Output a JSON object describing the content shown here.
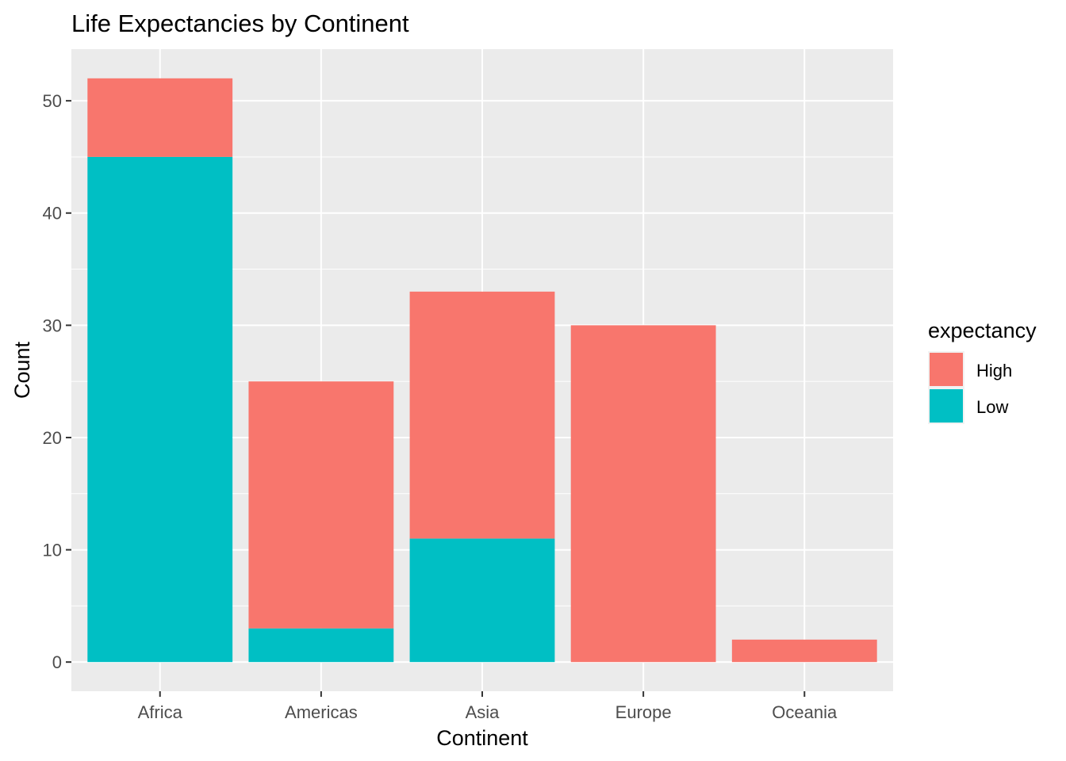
{
  "chart_data": {
    "type": "bar",
    "stacked": true,
    "title": "Life Expectancies by Continent",
    "xlabel": "Continent",
    "ylabel": "Count",
    "categories": [
      "Africa",
      "Americas",
      "Asia",
      "Europe",
      "Oceania"
    ],
    "series": [
      {
        "name": "High",
        "color": "#F8766D",
        "values": [
          7,
          22,
          22,
          30,
          2
        ]
      },
      {
        "name": "Low",
        "color": "#00BFC4",
        "values": [
          45,
          3,
          11,
          0,
          0
        ]
      }
    ],
    "ylim": [
      -2.6,
      54.6
    ],
    "yticks": [
      0,
      10,
      20,
      30,
      40,
      50
    ],
    "grid": true,
    "legend": {
      "title": "expectancy",
      "position": "right"
    },
    "panel_background": "#EBEBEB"
  }
}
